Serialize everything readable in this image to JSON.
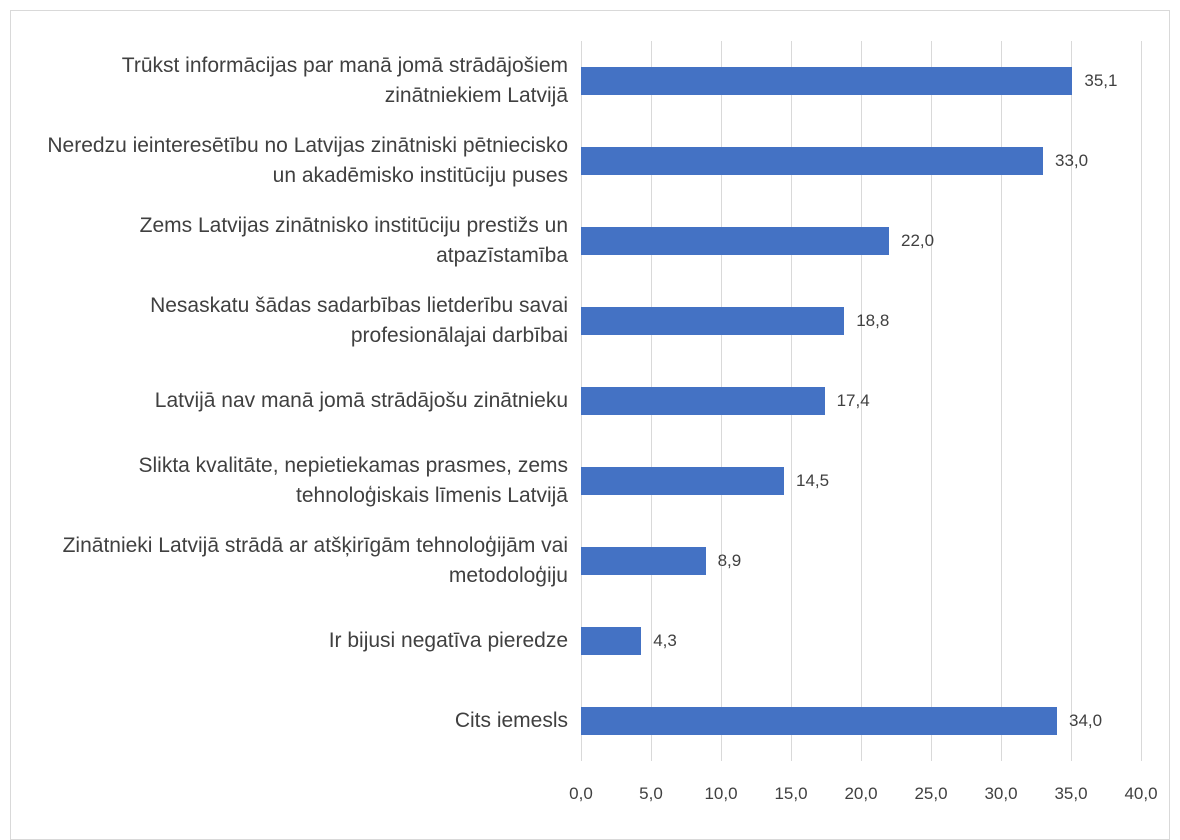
{
  "chart_data": {
    "type": "bar",
    "orientation": "horizontal",
    "categories": [
      "Trūkst informācijas par manā jomā strādājošiem zinātniekiem Latvijā",
      "Neredzu ieinteresētību no Latvijas zinātniski pētniecisko un akadēmisko institūciju puses",
      "Zems Latvijas zinātnisko institūciju prestižs un atpazīstamība",
      "Nesaskatu šādas sadarbības lietderību savai profesionālajai darbībai",
      "Latvijā nav manā jomā strādājošu zinātnieku",
      "Slikta kvalitāte, nepietiekamas prasmes, zems tehnoloģiskais līmenis Latvijā",
      "Zinātnieki Latvijā strādā ar atšķirīgām tehnoloģijām vai metodoloģiju",
      "Ir bijusi negatīva pieredze",
      "Cits iemesls"
    ],
    "values": [
      35.1,
      33.0,
      22.0,
      18.8,
      17.4,
      14.5,
      8.9,
      4.3,
      34.0
    ],
    "value_labels": [
      "35,1",
      "33,0",
      "22,0",
      "18,8",
      "17,4",
      "14,5",
      "8,9",
      "4,3",
      "34,0"
    ],
    "color": "#4472c4",
    "xlim": [
      0,
      40
    ],
    "xticks": [
      {
        "value": 0,
        "label": "0,0"
      },
      {
        "value": 5,
        "label": "5,0"
      },
      {
        "value": 10,
        "label": "10,0"
      },
      {
        "value": 15,
        "label": "15,0"
      },
      {
        "value": 20,
        "label": "20,0"
      },
      {
        "value": 25,
        "label": "25,0"
      },
      {
        "value": 30,
        "label": "30,0"
      },
      {
        "value": 35,
        "label": "35,0"
      },
      {
        "value": 40,
        "label": "40,0"
      }
    ],
    "grid": true
  }
}
